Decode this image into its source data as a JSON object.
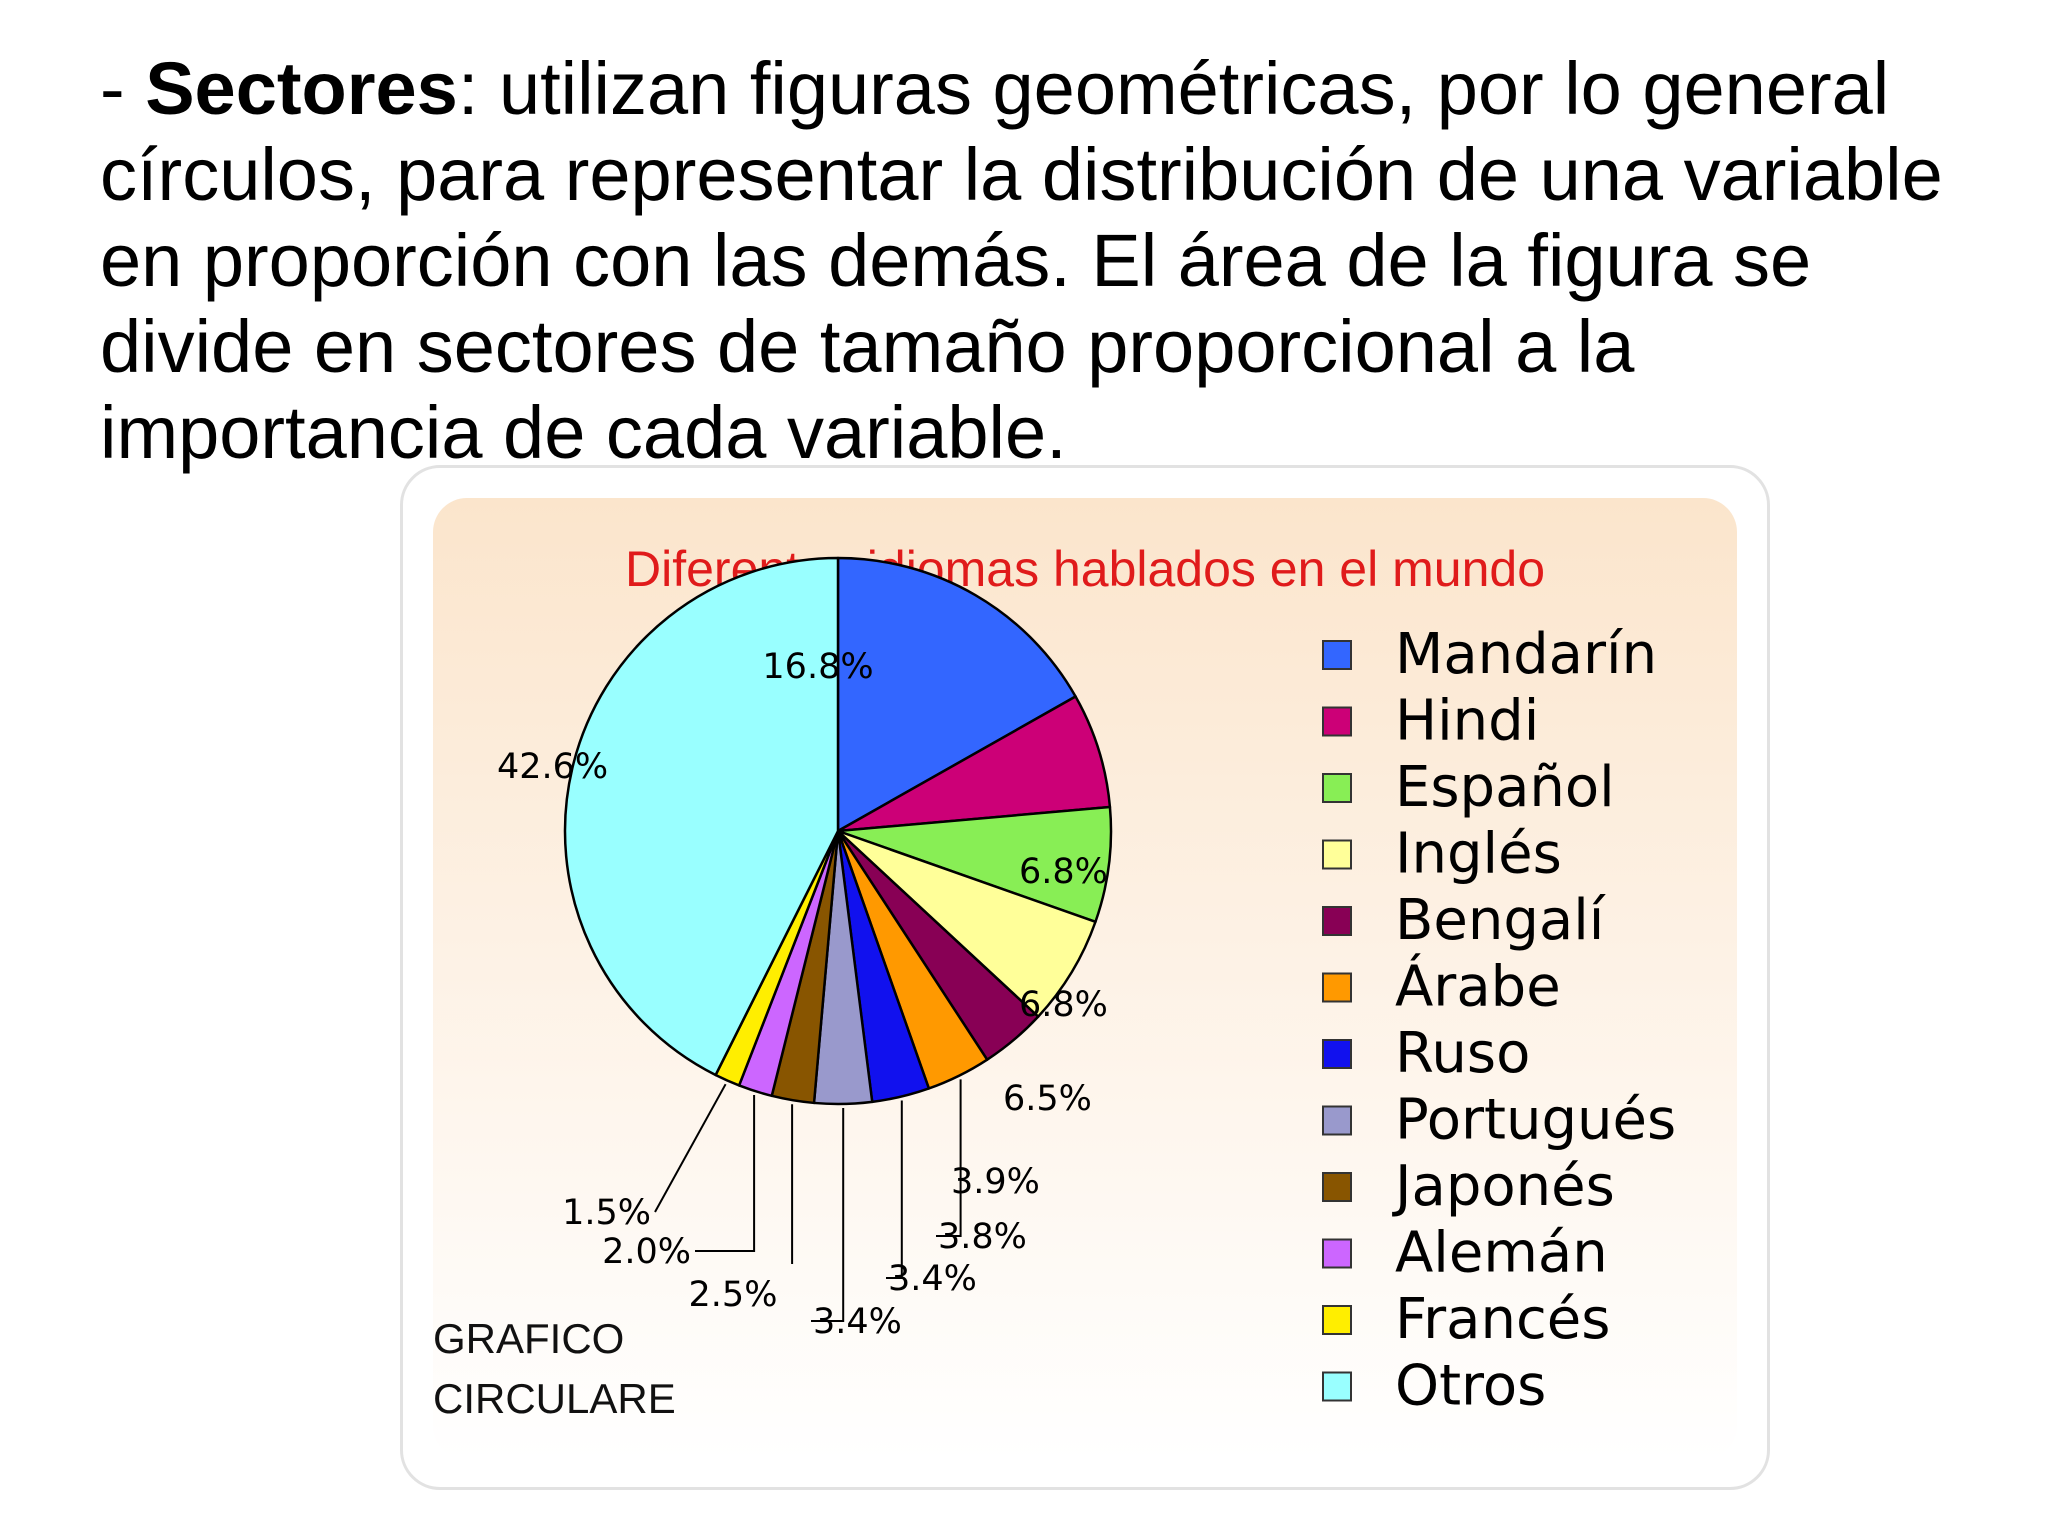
{
  "slide": {
    "dash": "- ",
    "bold_term": "Sectores",
    "body": ": utilizan figuras geométricas, por lo general círculos, para representar la distribución de una variable en proporción con las demás. El área de la figura se divide en sectores de tamaño proporcional a la importancia de cada variable."
  },
  "chart_data": {
    "type": "pie",
    "title": "Diferentes idiomas hablados en el mundo",
    "categories": [
      "Mandarín",
      "Hindi",
      "Español",
      "Inglés",
      "Bengalí",
      "Árabe",
      "Ruso",
      "Portugués",
      "Japonés",
      "Alemán",
      "Francés",
      "Otros"
    ],
    "values": [
      16.8,
      6.8,
      6.8,
      6.5,
      3.9,
      3.8,
      3.4,
      3.4,
      2.5,
      2.0,
      1.5,
      42.6
    ],
    "labels": [
      "16.8%",
      "6.8%",
      "6.8%",
      "6.5%",
      "3.9%",
      "3.8%",
      "3.4%",
      "3.4%",
      "2.5%",
      "2.0%",
      "1.5%",
      "42.6%"
    ],
    "colors": [
      "#3366ff",
      "#cc0077",
      "#88ee55",
      "#ffff99",
      "#880055",
      "#ff9900",
      "#1111ee",
      "#9999cc",
      "#885500",
      "#cc66ff",
      "#ffee00",
      "#99ffff"
    ],
    "legend_position": "right",
    "corner_label": [
      "GRAFICO",
      "CIRCULARE"
    ]
  }
}
